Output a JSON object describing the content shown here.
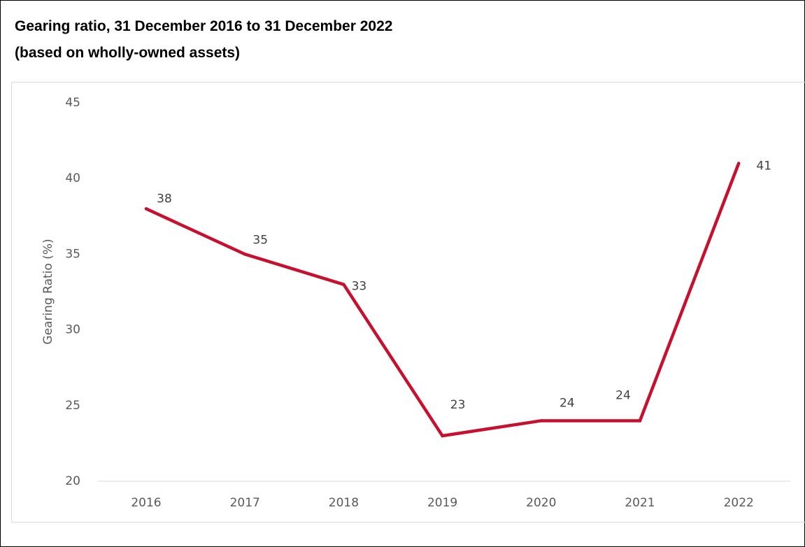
{
  "title_line1": "Gearing ratio, 31 December 2016 to 31 December 2022",
  "title_line2": "(based on wholly-owned assets)",
  "chart_data": {
    "type": "line",
    "title": "Gearing ratio, 31 December 2016 to 31 December 2022 (based on wholly-owned assets)",
    "xlabel": "",
    "ylabel": "Gearing Ratio (%)",
    "categories": [
      "2016",
      "2017",
      "2018",
      "2019",
      "2020",
      "2021",
      "2022"
    ],
    "series": [
      {
        "values": [
          38,
          35,
          33,
          23,
          24,
          24,
          41
        ],
        "color": "#c8102e"
      }
    ],
    "ylim": [
      20,
      45
    ],
    "yticks": [
      20,
      25,
      30,
      35,
      40,
      45
    ],
    "data_labels": true,
    "grid": false,
    "legend": "none"
  },
  "colors": {
    "line": "#c8102e",
    "axis_text": "#595959",
    "axis_line": "#d9d9d9"
  }
}
